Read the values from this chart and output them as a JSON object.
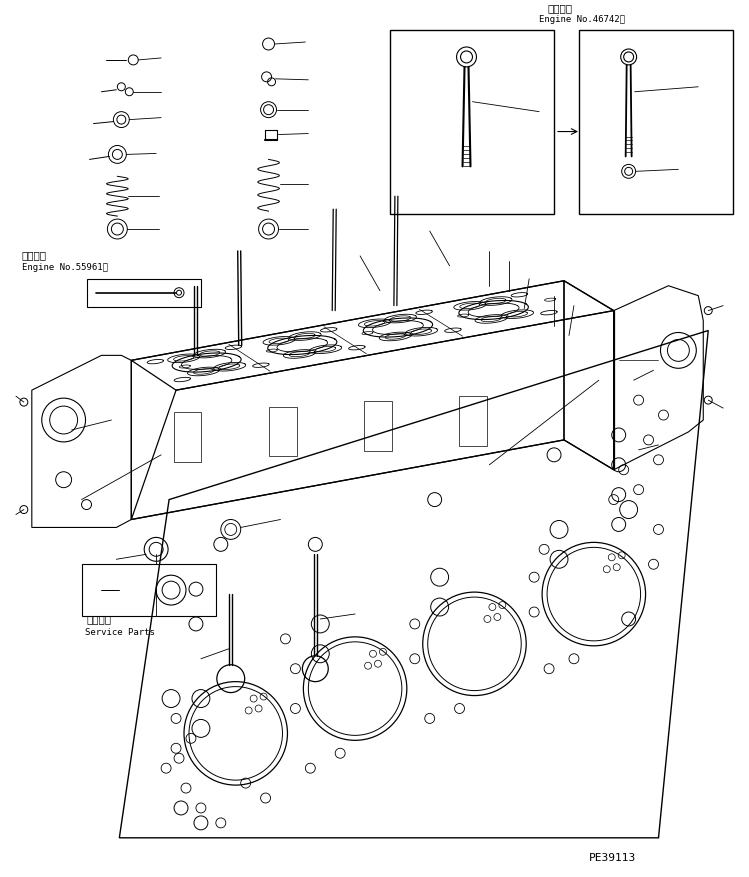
{
  "bg_color": "#ffffff",
  "lc": "#000000",
  "title_top_right_jp": "適用号機",
  "title_top_right_en": "Engine No.46742～",
  "title_left_jp": "適用号機",
  "title_left_en": "Engine No.55961～",
  "service_parts_jp": "補給専用",
  "service_parts_en": "Service Parts",
  "part_number": "PE39113",
  "figsize": [
    7.49,
    8.78
  ],
  "dpi": 100
}
